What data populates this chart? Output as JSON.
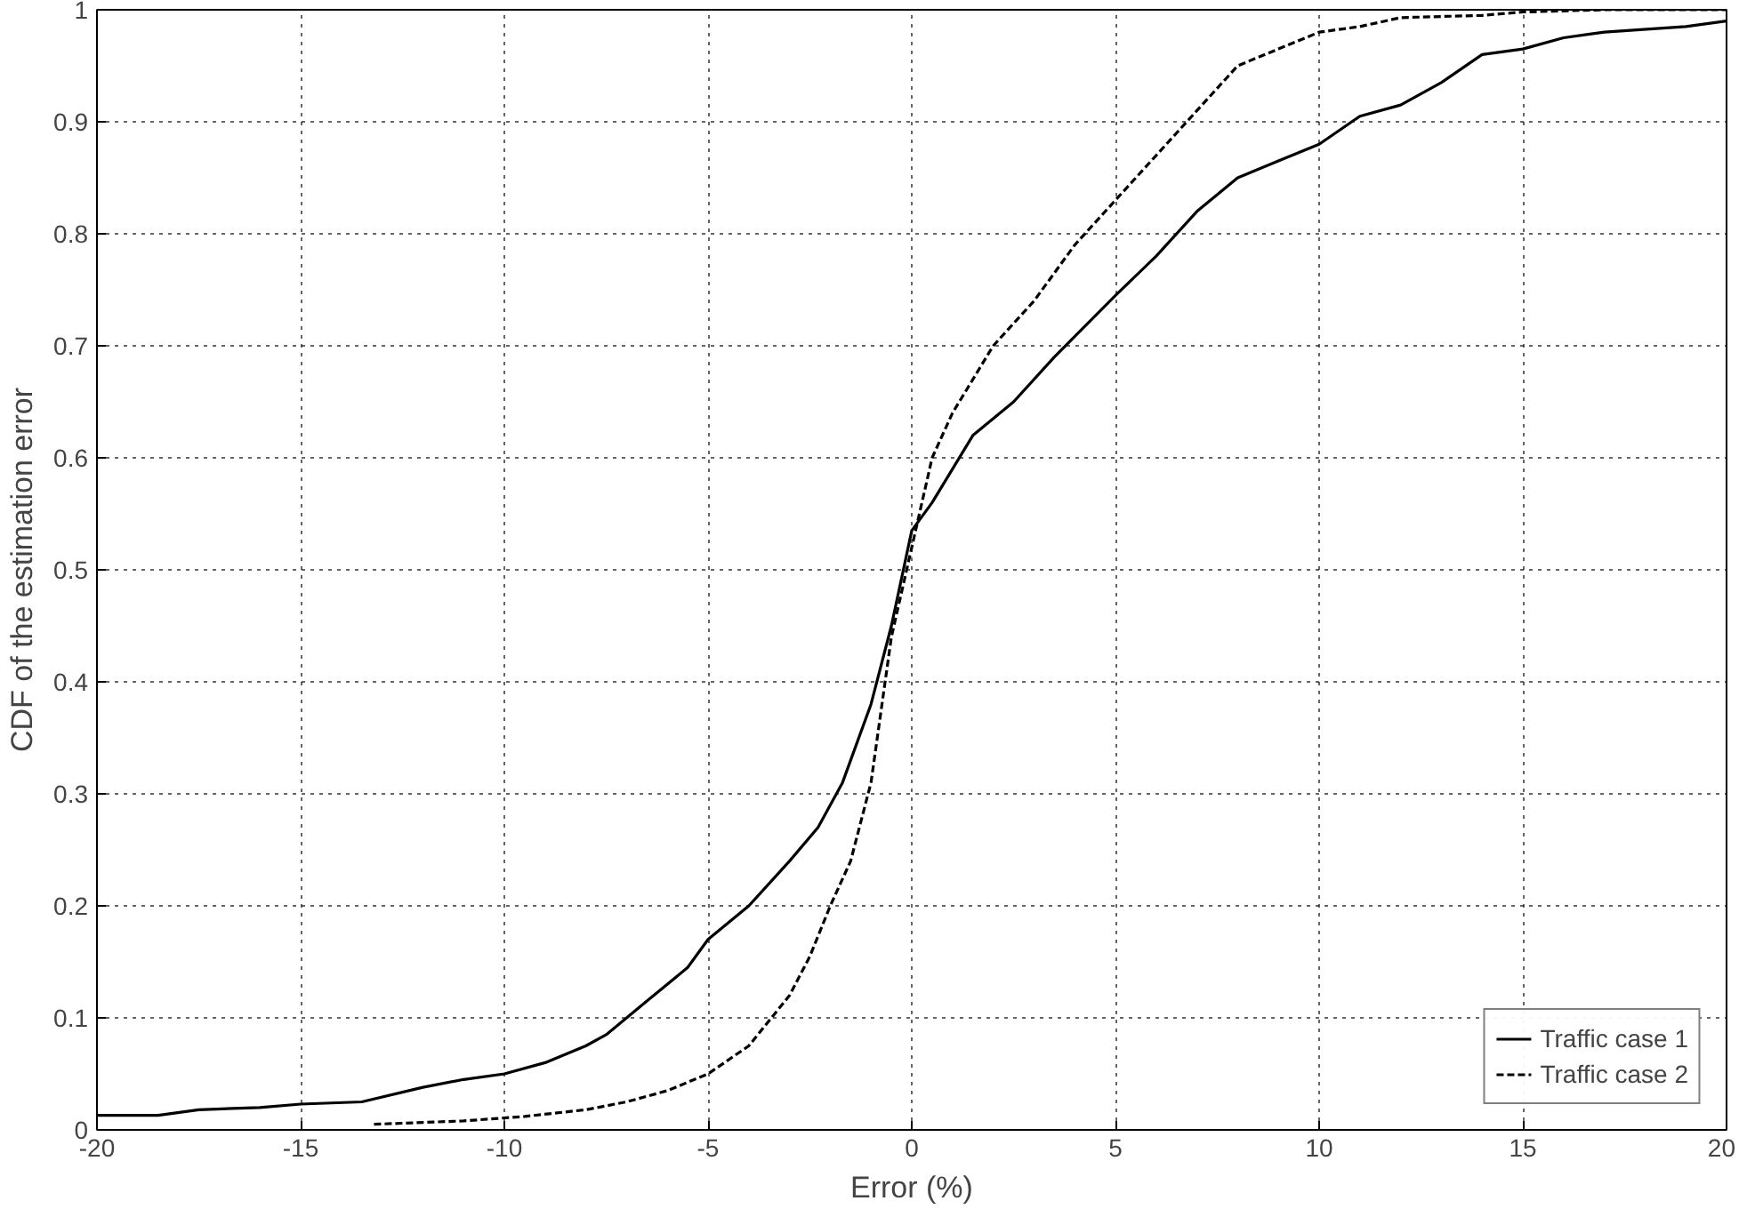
{
  "chart_data": {
    "type": "line",
    "xlabel": "Error (%)",
    "ylabel": "CDF of the estimation error",
    "xlim": [
      -20,
      20
    ],
    "xticks": [
      -20,
      -15,
      -10,
      -5,
      0,
      5,
      10,
      15,
      20
    ],
    "ylim": [
      0,
      1
    ],
    "yticks": [
      0,
      0.1,
      0.2,
      0.3,
      0.4,
      0.5,
      0.6,
      0.7,
      0.8,
      0.9,
      1
    ],
    "grid": true,
    "legend": "bottom right",
    "marker": "none",
    "series": [
      {
        "name": "Traffic case 1",
        "color": "#000000",
        "line_style": "solid",
        "x": [
          -20,
          -18.5,
          -17.5,
          -16,
          -15,
          -13.5,
          -12,
          -11,
          -10,
          -9,
          -8,
          -7.5,
          -6.5,
          -5.5,
          -5,
          -4,
          -3,
          -2.3,
          -1.7,
          -1,
          -0.5,
          0,
          0.5,
          1,
          1.5,
          2.5,
          3.5,
          5,
          6,
          7,
          8,
          9,
          10,
          11,
          12,
          13,
          14,
          15,
          16,
          17,
          19,
          20
        ],
        "values": [
          0.013,
          0.013,
          0.018,
          0.02,
          0.023,
          0.025,
          0.038,
          0.045,
          0.05,
          0.06,
          0.075,
          0.085,
          0.115,
          0.145,
          0.17,
          0.2,
          0.24,
          0.27,
          0.31,
          0.38,
          0.45,
          0.535,
          0.56,
          0.59,
          0.62,
          0.65,
          0.69,
          0.745,
          0.78,
          0.82,
          0.85,
          0.865,
          0.88,
          0.905,
          0.915,
          0.935,
          0.96,
          0.965,
          0.975,
          0.98,
          0.985,
          0.99
        ]
      },
      {
        "name": "Traffic case 2",
        "color": "#000000",
        "line_style": "dashed",
        "x": [
          -13.2,
          -11,
          -9.5,
          -8,
          -7,
          -6,
          -5,
          -4,
          -3,
          -2.5,
          -2,
          -1.5,
          -1,
          -0.5,
          0,
          0.5,
          1,
          2,
          3,
          4,
          5,
          6,
          7,
          8,
          9,
          10,
          11,
          12,
          14,
          15,
          17,
          20
        ],
        "values": [
          0.005,
          0.008,
          0.012,
          0.018,
          0.025,
          0.035,
          0.05,
          0.075,
          0.12,
          0.155,
          0.2,
          0.24,
          0.31,
          0.44,
          0.52,
          0.6,
          0.64,
          0.7,
          0.74,
          0.79,
          0.83,
          0.87,
          0.91,
          0.95,
          0.965,
          0.98,
          0.985,
          0.993,
          0.995,
          0.998,
          1.0,
          1.0
        ]
      }
    ]
  }
}
